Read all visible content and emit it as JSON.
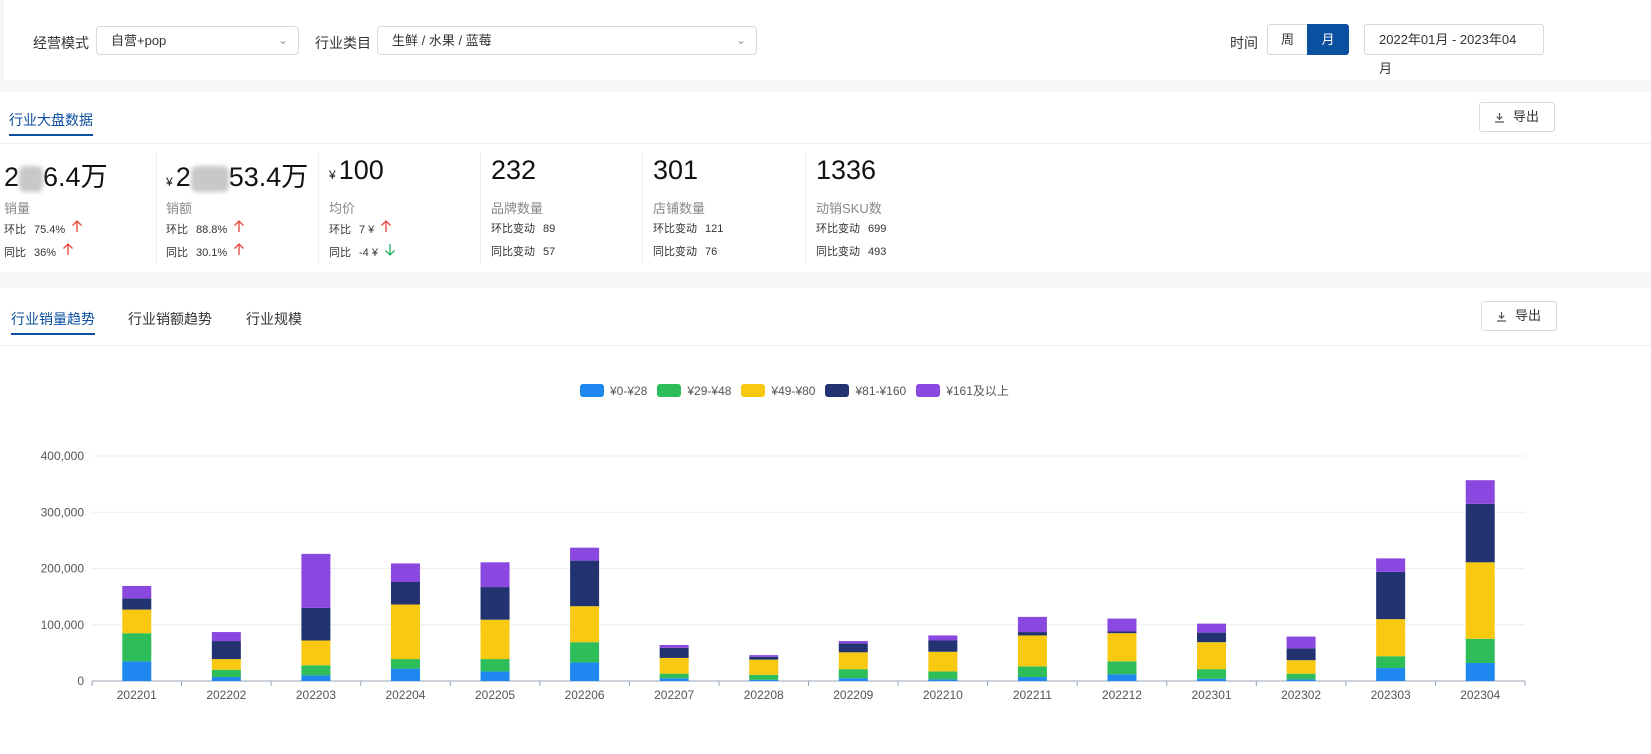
{
  "filters": {
    "mode_label": "经营模式",
    "mode_value": "自营+pop",
    "category_label": "行业类目",
    "category_value": "生鲜 / 水果 / 蓝莓",
    "time_label": "时间",
    "week_label": "周",
    "month_label": "月",
    "active_period": "月",
    "date_range": "2022年01月 - 2023年04月"
  },
  "overview": {
    "title": "行业大盘数据",
    "export_label": "导出",
    "kpis": [
      {
        "value_pre": "2",
        "value_post": "6.4万",
        "name": "销量",
        "r1_label": "环比",
        "r1_value": "75.4%",
        "r1_dir": "up",
        "r2_label": "同比",
        "r2_value": "36%",
        "r2_dir": "up"
      },
      {
        "yen": "¥",
        "value_pre": "2",
        "value_post": "53.4万",
        "name": "销额",
        "r1_label": "环比",
        "r1_value": "88.8%",
        "r1_dir": "up",
        "r2_label": "同比",
        "r2_value": "30.1%",
        "r2_dir": "up"
      },
      {
        "yen": "¥",
        "value": "100",
        "name": "均价",
        "r1_label": "环比",
        "r1_value": "7 ¥",
        "r1_dir": "up",
        "r2_label": "同比",
        "r2_value": "-4 ¥",
        "r2_dir": "down"
      },
      {
        "value": "232",
        "name": "品牌数量",
        "r1_label": "环比变动",
        "r1_value": "89",
        "r2_label": "同比变动",
        "r2_value": "57"
      },
      {
        "value": "301",
        "name": "店铺数量",
        "r1_label": "环比变动",
        "r1_value": "121",
        "r2_label": "同比变动",
        "r2_value": "76"
      },
      {
        "value": "1336",
        "name": "动销SKU数",
        "r1_label": "环比变动",
        "r1_value": "699",
        "r2_label": "同比变动",
        "r2_value": "493"
      }
    ]
  },
  "trend": {
    "tabs": [
      "行业销量趋势",
      "行业销额趋势",
      "行业规模"
    ],
    "active_tab": 0,
    "export_label": "导出"
  },
  "colors": {
    "brand": "#0b4fa0",
    "up": "#e8443a",
    "down": "#27ae60"
  },
  "chart_data": {
    "type": "bar",
    "stacked": true,
    "categories": [
      "202201",
      "202202",
      "202203",
      "202204",
      "202205",
      "202206",
      "202207",
      "202208",
      "202209",
      "202210",
      "202211",
      "202212",
      "202301",
      "202302",
      "202303",
      "202304"
    ],
    "ylim": [
      0,
      400000
    ],
    "yticks": [
      0,
      100000,
      200000,
      300000,
      400000
    ],
    "ytick_labels": [
      "0",
      "100,000",
      "200,000",
      "300,000",
      "400,000"
    ],
    "grid": true,
    "legend_position": "top-center",
    "series": [
      {
        "name": "¥0-¥28",
        "color": "#1e88f0",
        "values": [
          35000,
          7000,
          10000,
          22000,
          17000,
          33000,
          5000,
          2000,
          5000,
          3000,
          7000,
          12000,
          4000,
          3000,
          23000,
          32000
        ]
      },
      {
        "name": "¥29-¥48",
        "color": "#2dbe5a",
        "values": [
          50000,
          13000,
          18000,
          17000,
          22000,
          36000,
          8000,
          9000,
          16000,
          14000,
          19000,
          23000,
          17000,
          10000,
          21000,
          43000
        ]
      },
      {
        "name": "¥49-¥80",
        "color": "#f9c912",
        "values": [
          42000,
          19000,
          44000,
          97000,
          70000,
          64000,
          28000,
          27000,
          30000,
          35000,
          55000,
          50000,
          48000,
          24000,
          66000,
          136000
        ]
      },
      {
        "name": "¥81-¥160",
        "color": "#233372",
        "values": [
          20000,
          32000,
          58000,
          40000,
          58000,
          81000,
          18000,
          5000,
          16000,
          20000,
          6000,
          3000,
          17000,
          21000,
          84000,
          104000
        ]
      },
      {
        "name": "¥161及以上",
        "color": "#8a48e0",
        "values": [
          22000,
          16000,
          96000,
          33000,
          44000,
          23000,
          5000,
          3000,
          4000,
          9000,
          27000,
          23000,
          16000,
          21000,
          24000,
          42000
        ]
      }
    ]
  }
}
